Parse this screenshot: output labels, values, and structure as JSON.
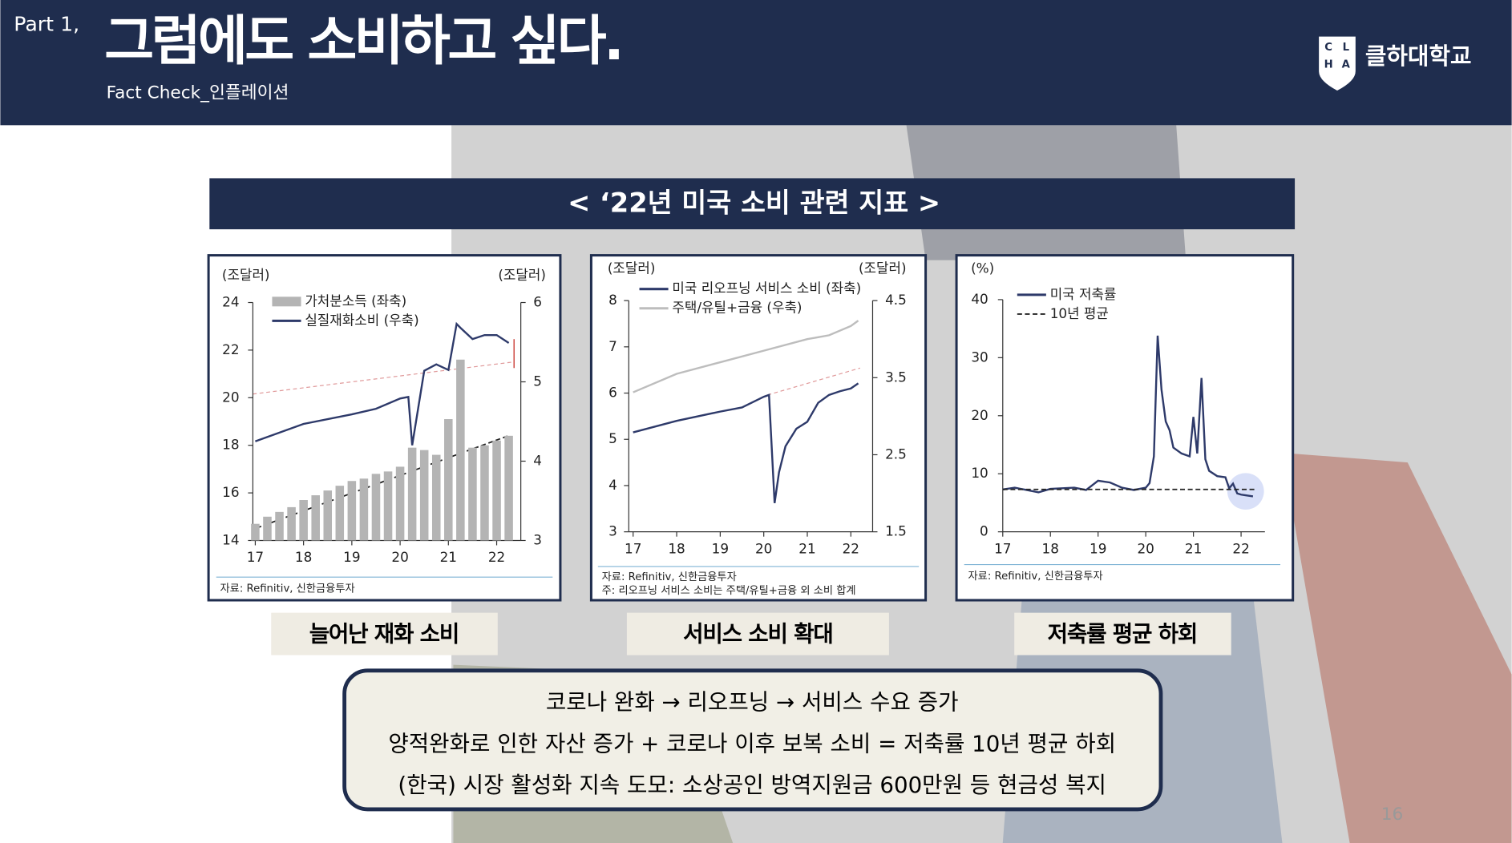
{
  "header": {
    "part": "Part 1,",
    "title": "그럼에도 소비하고 싶다.",
    "subtitle": "Fact Check_인플레이션",
    "logo": "클하대학교",
    "logo_letters": [
      "C",
      "L",
      "H",
      "A"
    ]
  },
  "banner": "< ‘22년 미국 소비 관련 지표 >",
  "chart_data": [
    {
      "type": "combo",
      "axis_title_left": "(조달러)",
      "axis_title_right": "(조달러)",
      "source": [
        "자료: Refinitiv, 신한금융투자"
      ],
      "xlim": [
        16.95,
        22.5
      ],
      "xticks": [
        17,
        18,
        19,
        20,
        21,
        22
      ],
      "ylim": [
        14,
        24
      ],
      "yticks": [
        14,
        16,
        18,
        20,
        22,
        24
      ],
      "y2lim": [
        3,
        6
      ],
      "y2ticks": [
        3,
        4,
        5,
        6
      ],
      "series": [
        {
          "name": "가처분소득 (좌축)",
          "type": "bar",
          "color": "#b4b4b4",
          "x": [
            17,
            17.25,
            17.5,
            17.75,
            18,
            18.25,
            18.5,
            18.75,
            19,
            19.25,
            19.5,
            19.75,
            20,
            20.25,
            20.5,
            20.75,
            21,
            21.25,
            21.5,
            21.75,
            22,
            22.25
          ],
          "values": [
            14.7,
            15,
            15.2,
            15.4,
            15.7,
            15.9,
            16.1,
            16.3,
            16.5,
            16.6,
            16.8,
            16.9,
            17.1,
            17.9,
            17.8,
            17.6,
            19.1,
            21.6,
            17.9,
            18,
            18.2,
            18.4
          ]
        },
        {
          "name": "실질재화소비 (우축)",
          "type": "line",
          "axis": "y2",
          "color": "#2e3a6a",
          "x": [
            17,
            18,
            19,
            19.5,
            20,
            20.17,
            20.25,
            20.5,
            20.75,
            21,
            21.17,
            21.25,
            21.5,
            21.75,
            22,
            22.25
          ],
          "values": [
            4.25,
            4.47,
            4.59,
            4.66,
            4.79,
            4.81,
            4.2,
            5.14,
            5.22,
            5.15,
            5.73,
            5.68,
            5.54,
            5.59,
            5.59,
            5.49
          ]
        }
      ]
    },
    {
      "type": "line",
      "axis_title_left": "(조달러)",
      "axis_title_right": "(조달러)",
      "source": [
        "자료: Refinitiv, 신한금융투자",
        "주: 리오프닝 서비스 소비는 주택/유틸+금융 외 소비 합계"
      ],
      "xlim": [
        16.9,
        22.5
      ],
      "xticks": [
        17,
        18,
        19,
        20,
        21,
        22
      ],
      "ylim": [
        3,
        8
      ],
      "yticks": [
        3,
        4,
        5,
        6,
        7,
        8
      ],
      "y2lim": [
        1.5,
        4.5
      ],
      "y2ticks": [
        1.5,
        2.5,
        3.5,
        4.5
      ],
      "series": [
        {
          "name": "미국 리오프닝 서비스 소비 (좌축)",
          "type": "line",
          "color": "#2e3a6a",
          "x": [
            17,
            18,
            19,
            19.5,
            20,
            20.12,
            20.25,
            20.35,
            20.5,
            20.75,
            21,
            21.25,
            21.5,
            21.75,
            22,
            22.17
          ],
          "values": [
            5.15,
            5.4,
            5.6,
            5.69,
            5.92,
            5.96,
            3.62,
            4.29,
            4.85,
            5.23,
            5.38,
            5.79,
            5.96,
            6.04,
            6.1,
            6.21
          ]
        },
        {
          "name": "주택/유틸+금융 (우축)",
          "type": "line",
          "axis": "y2",
          "color": "#bdbdbd",
          "x": [
            17,
            18,
            19,
            20,
            21,
            21.5,
            22,
            22.17
          ],
          "values": [
            3.31,
            3.55,
            3.7,
            3.85,
            4,
            4.05,
            4.17,
            4.24
          ]
        }
      ]
    },
    {
      "type": "line",
      "axis_title_left": "(%)",
      "source": [
        "자료: Refinitiv, 신한금융투자"
      ],
      "xlim": [
        17,
        22.5
      ],
      "xticks": [
        17,
        18,
        19,
        20,
        21,
        22
      ],
      "ylim": [
        0,
        40
      ],
      "yticks": [
        0,
        10,
        20,
        30,
        40
      ],
      "series": [
        {
          "name": "미국 저축률",
          "type": "line",
          "color": "#2e3a6a",
          "x": [
            17,
            17.25,
            17.5,
            17.75,
            18,
            18.5,
            18.75,
            19,
            19.25,
            19.5,
            19.75,
            20,
            20.08,
            20.17,
            20.25,
            20.33,
            20.42,
            20.5,
            20.58,
            20.75,
            20.92,
            21,
            21.08,
            21.17,
            21.25,
            21.33,
            21.5,
            21.67,
            21.75,
            21.83,
            21.92,
            22,
            22.08,
            22.25
          ],
          "values": [
            7.3,
            7.6,
            7.2,
            6.8,
            7.4,
            7.6,
            7.2,
            8.8,
            8.5,
            7.6,
            7.2,
            7.6,
            8.4,
            13,
            33.8,
            24.5,
            19,
            17.5,
            14.5,
            13.5,
            13,
            19.8,
            13.5,
            26.5,
            12.5,
            10.5,
            9.6,
            9.4,
            7.5,
            8.3,
            6.6,
            6.4,
            6.3,
            6.1
          ]
        },
        {
          "name": "10년 평균",
          "type": "line",
          "dashed": true,
          "color": "#222222",
          "x": [
            17,
            22.3
          ],
          "values": [
            7.3,
            7.3
          ]
        }
      ]
    }
  ],
  "captions": [
    "늘어난 재화 소비",
    "서비스 소비 확대",
    "저축률 평균 하회"
  ],
  "summary": [
    "코로나 완화 → 리오프닝 → 서비스 수요 증가",
    "양적완화로 인한 자산 증가 + 코로나 이후 보복 소비 = 저축률 10년 평균 하회",
    "(한국) 시장 활성화 지속 도모: 소상공인 방역지원금 600만원 등 현금성 복지"
  ],
  "page_number": "16"
}
